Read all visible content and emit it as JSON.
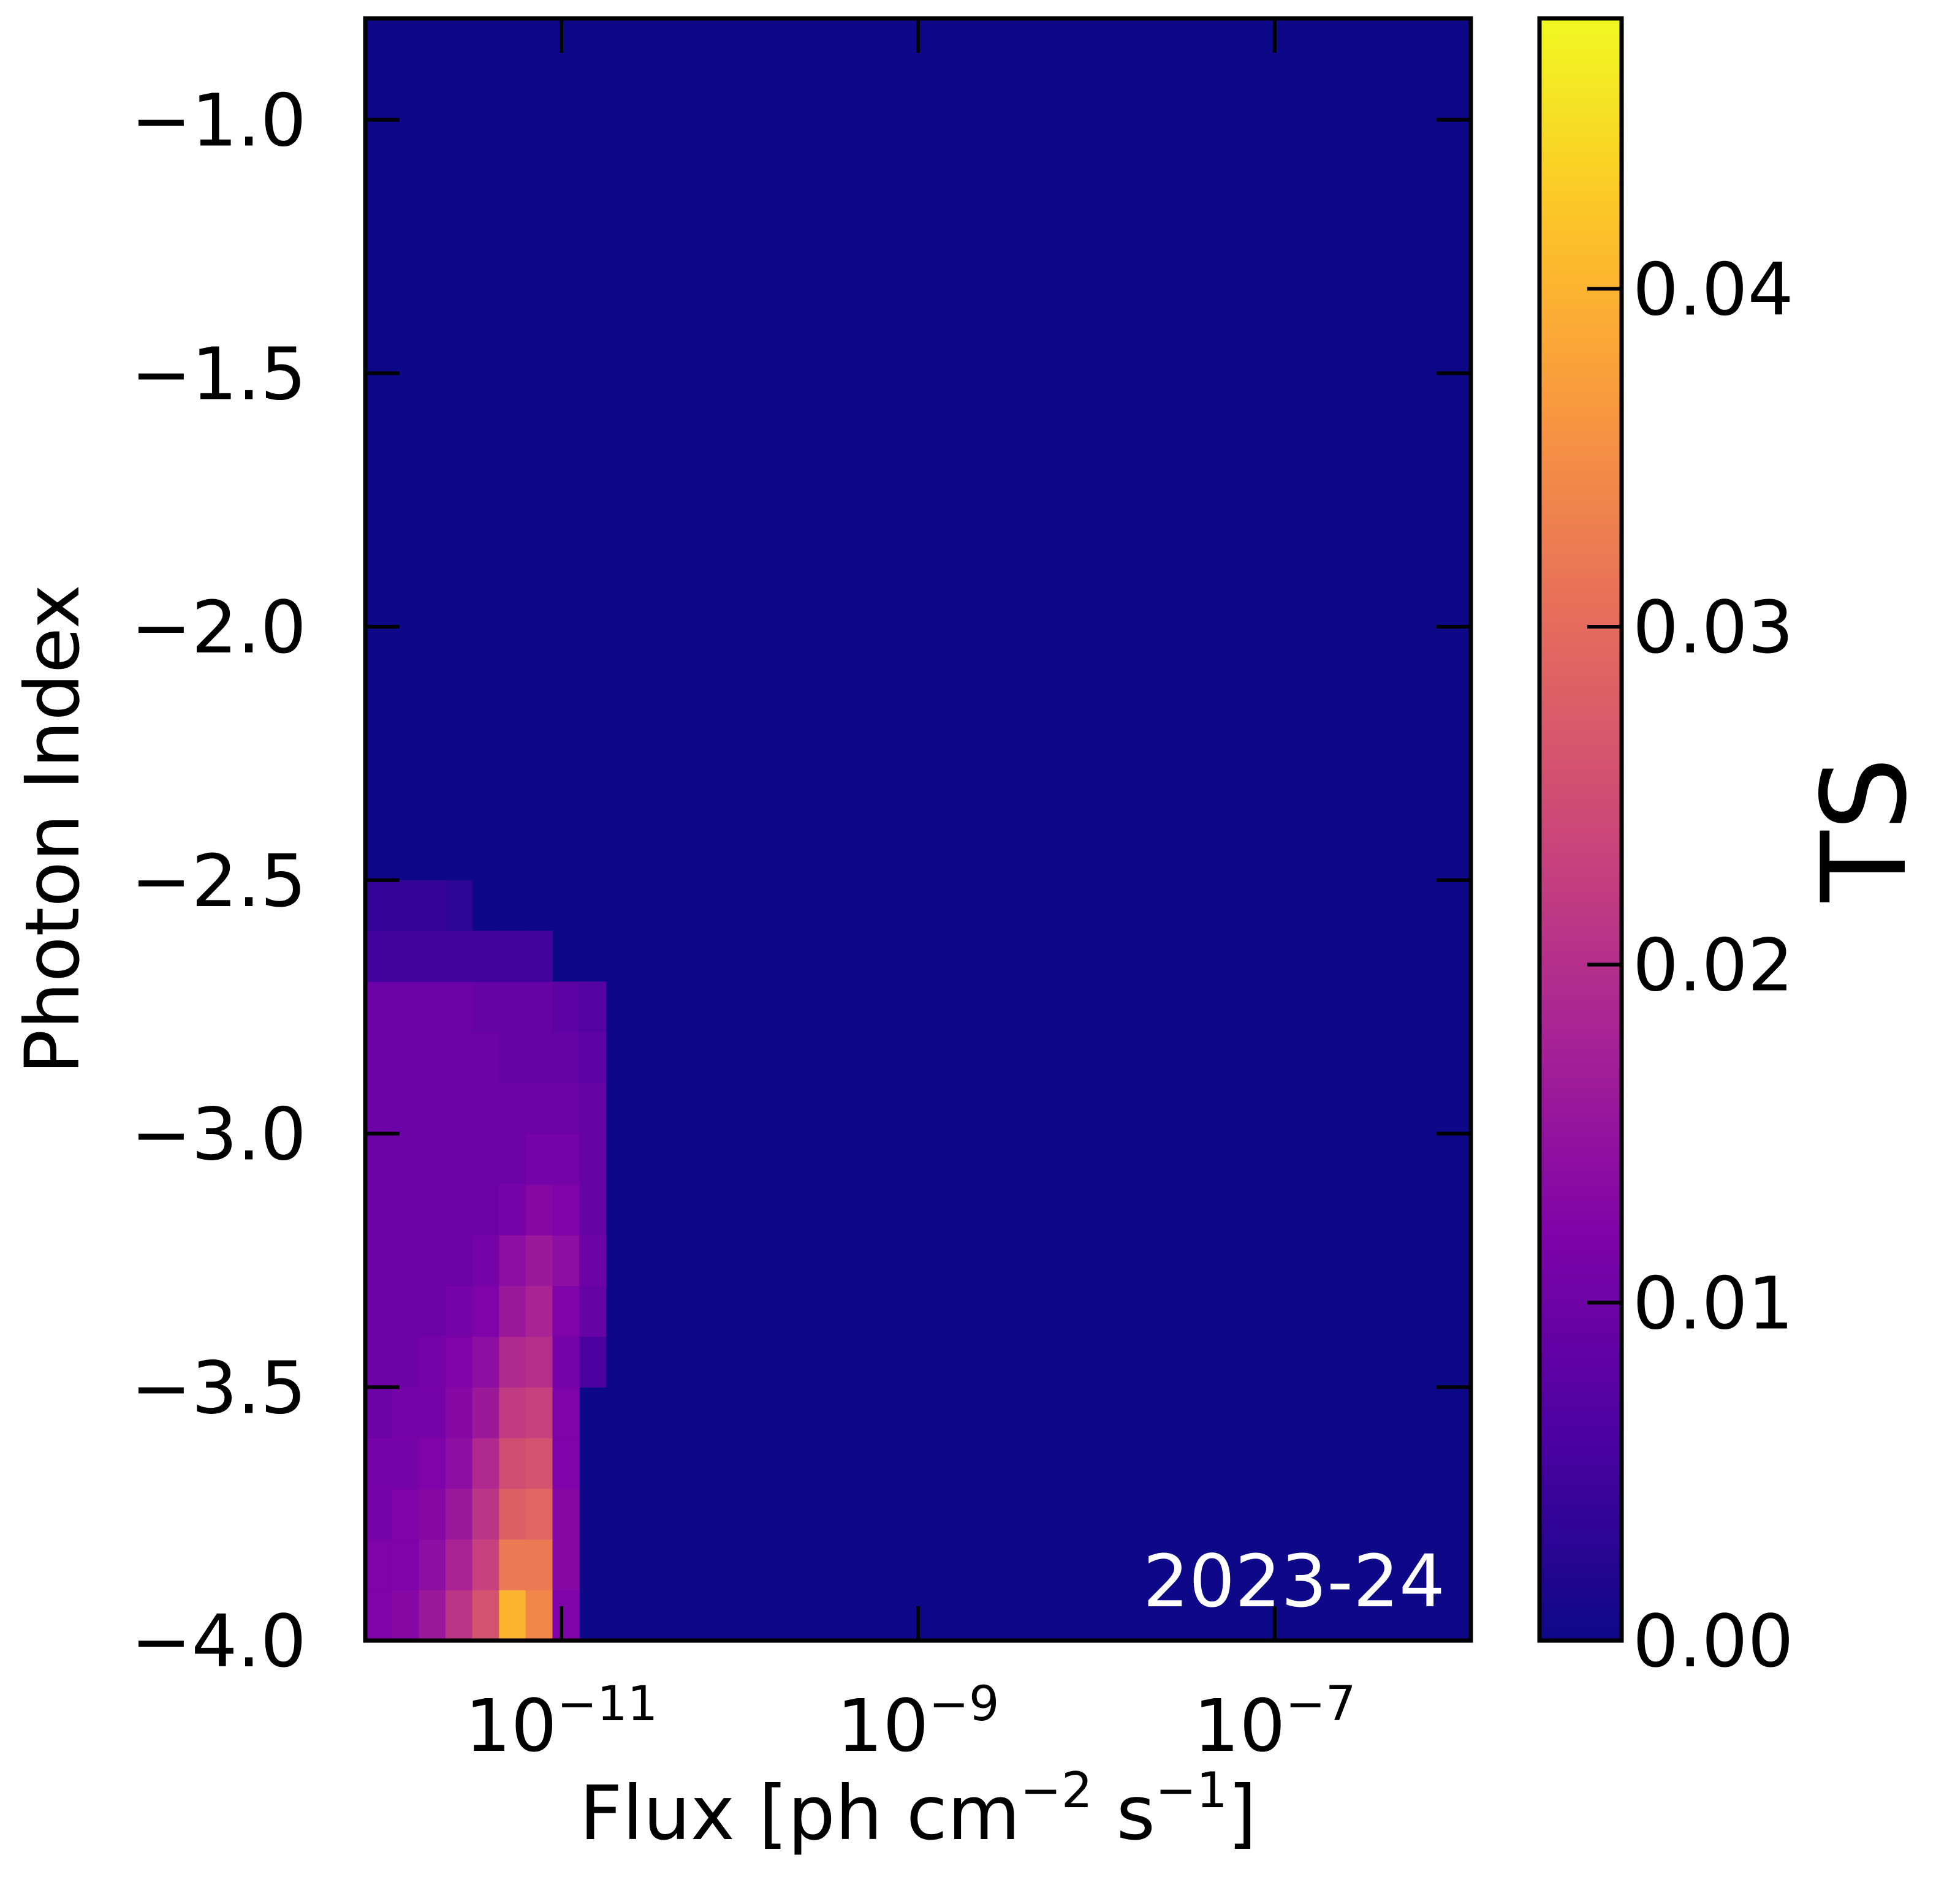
{
  "chart_data": {
    "type": "heatmap",
    "title": "",
    "xlabel": {
      "main": "Flux [ph cm",
      "sup1": "−2",
      "mid": " s",
      "sup2": "−1",
      "end": "]"
    },
    "ylabel": "Photon Index",
    "colorbar_label": "TS",
    "annotation": "2023-24",
    "colormap": "plasma",
    "x_scale": "log",
    "x_range_log10": [
      -12.1,
      -5.9
    ],
    "y_range": [
      -4.0,
      -0.8
    ],
    "color_range": [
      0.0,
      0.048
    ],
    "x_ticks": [
      {
        "log10": -11,
        "base": "10",
        "exp": "−11"
      },
      {
        "log10": -9,
        "base": "10",
        "exp": "−9"
      },
      {
        "log10": -7,
        "base": "10",
        "exp": "−7"
      }
    ],
    "y_ticks": [
      {
        "value": -1.0,
        "label": "−1.0"
      },
      {
        "value": -1.5,
        "label": "−1.5"
      },
      {
        "value": -2.0,
        "label": "−2.0"
      },
      {
        "value": -2.5,
        "label": "−2.5"
      },
      {
        "value": -3.0,
        "label": "−3.0"
      },
      {
        "value": -3.5,
        "label": "−3.5"
      },
      {
        "value": -4.0,
        "label": "−4.0"
      }
    ],
    "colorbar_ticks": [
      {
        "value": 0.0,
        "label": "0.00"
      },
      {
        "value": 0.01,
        "label": "0.01"
      },
      {
        "value": 0.02,
        "label": "0.02"
      },
      {
        "value": 0.03,
        "label": "0.03"
      },
      {
        "value": 0.04,
        "label": "0.04"
      }
    ],
    "background_value": 0.0,
    "grid": {
      "x_log10_start": -12.1,
      "x_log10_step": 0.15,
      "y_start": -4.0,
      "y_step": 0.1
    },
    "cells": [
      [
        0.012,
        0.013,
        0.016,
        0.021,
        0.026,
        0.04,
        0.034,
        0.012,
        0.0,
        0.0,
        0.0,
        0.0
      ],
      [
        0.012,
        0.012,
        0.014,
        0.018,
        0.023,
        0.032,
        0.032,
        0.013,
        0.0,
        0.0,
        0.0,
        0.0
      ],
      [
        0.011,
        0.012,
        0.013,
        0.016,
        0.021,
        0.028,
        0.029,
        0.013,
        0.0,
        0.0,
        0.0,
        0.0
      ],
      [
        0.011,
        0.011,
        0.012,
        0.014,
        0.019,
        0.025,
        0.026,
        0.012,
        0.0,
        0.0,
        0.0,
        0.0
      ],
      [
        0.01,
        0.011,
        0.011,
        0.013,
        0.016,
        0.022,
        0.023,
        0.012,
        0.0,
        0.0,
        0.0,
        0.0
      ],
      [
        0.01,
        0.01,
        0.011,
        0.012,
        0.014,
        0.019,
        0.02,
        0.011,
        0.006,
        0.0,
        0.0,
        0.0
      ],
      [
        0.01,
        0.01,
        0.01,
        0.011,
        0.012,
        0.016,
        0.018,
        0.012,
        0.009,
        0.0,
        0.0,
        0.0
      ],
      [
        0.01,
        0.01,
        0.01,
        0.01,
        0.011,
        0.014,
        0.016,
        0.014,
        0.01,
        0.0,
        0.0,
        0.0
      ],
      [
        0.01,
        0.01,
        0.01,
        0.01,
        0.01,
        0.011,
        0.013,
        0.012,
        0.009,
        0.0,
        0.0,
        0.0
      ],
      [
        0.01,
        0.01,
        0.01,
        0.01,
        0.01,
        0.01,
        0.011,
        0.011,
        0.009,
        0.0,
        0.0,
        0.0
      ],
      [
        0.01,
        0.01,
        0.01,
        0.01,
        0.01,
        0.01,
        0.01,
        0.01,
        0.009,
        0.0,
        0.0,
        0.0
      ],
      [
        0.01,
        0.01,
        0.01,
        0.01,
        0.01,
        0.009,
        0.009,
        0.009,
        0.008,
        0.0,
        0.0,
        0.0
      ],
      [
        0.01,
        0.01,
        0.01,
        0.01,
        0.009,
        0.009,
        0.009,
        0.008,
        0.007,
        0.0,
        0.0,
        0.0
      ],
      [
        0.005,
        0.005,
        0.005,
        0.005,
        0.005,
        0.005,
        0.005,
        0.0,
        0.0,
        0.0,
        0.0,
        0.0
      ],
      [
        0.004,
        0.004,
        0.004,
        0.003,
        0.0,
        0.0,
        0.0,
        0.0,
        0.0,
        0.0,
        0.0,
        0.0
      ]
    ]
  }
}
